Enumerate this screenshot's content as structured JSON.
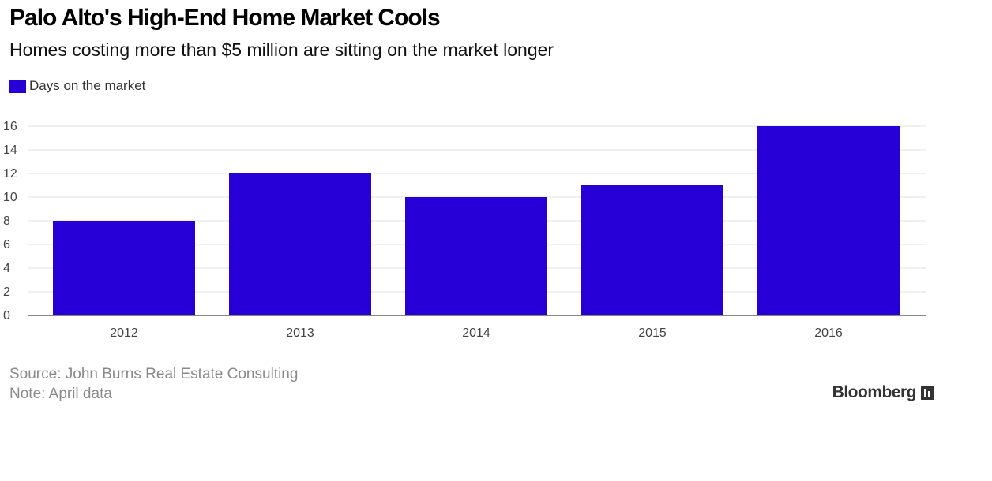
{
  "header": {
    "title": "Palo Alto's High-End Home Market Cools",
    "subtitle": "Homes costing more than $5 million are sitting on the market longer"
  },
  "legend": {
    "label": "Days on the market",
    "color": "#2600d6"
  },
  "footer": {
    "source": "Source: John Burns Real Estate Consulting",
    "note": "Note: April data",
    "brand": "Bloomberg"
  },
  "chart_data": {
    "type": "bar",
    "categories": [
      "2012",
      "2013",
      "2014",
      "2015",
      "2016"
    ],
    "series": [
      {
        "name": "Days on the market",
        "values": [
          8,
          12,
          10,
          11,
          16
        ],
        "color": "#2600d6"
      }
    ],
    "ylim": [
      0,
      16
    ],
    "yticks": [
      0,
      2,
      4,
      6,
      8,
      10,
      12,
      14,
      16
    ],
    "grid": true,
    "legend_position": "top-left",
    "xlabel": "",
    "ylabel": ""
  }
}
